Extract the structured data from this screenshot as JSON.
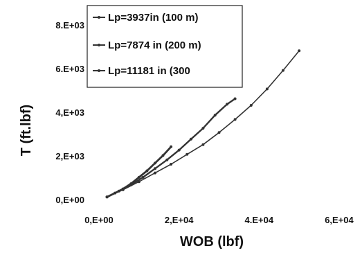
{
  "chart_data": {
    "type": "line",
    "title": "",
    "xlabel": "WOB (lbf)",
    "ylabel": "T (ft.lbf)",
    "xlim": [
      0,
      60000
    ],
    "ylim": [
      0,
      8000
    ],
    "x_ticks": [
      {
        "value": 0,
        "label": "0,E+00"
      },
      {
        "value": 20000,
        "label": "2,E+04"
      },
      {
        "value": 40000,
        "label": "4.E+04"
      },
      {
        "value": 60000,
        "label": "6,E+04"
      }
    ],
    "y_ticks": [
      {
        "value": 0,
        "label": "0,E+00"
      },
      {
        "value": 2000,
        "label": "2,E+03"
      },
      {
        "value": 4000,
        "label": "4,E+03"
      },
      {
        "value": 6000,
        "label": "6.E+03"
      },
      {
        "value": 8000,
        "label": "8.E+03"
      }
    ],
    "grid": false,
    "legend_position": "top-left",
    "series": [
      {
        "name": "Lp=3937in (100 m)",
        "color": "#333333",
        "x": [
          2000,
          4000,
          6000,
          8000,
          10000,
          12000,
          14000,
          16000,
          18000
        ],
        "y": [
          150,
          330,
          520,
          760,
          1050,
          1350,
          1700,
          2050,
          2450
        ]
      },
      {
        "name": "Lp=7874 in (200 m)",
        "color": "#333333",
        "x": [
          2000,
          5000,
          8000,
          11000,
          14000,
          17000,
          20000,
          23000,
          26000,
          29000,
          32000,
          34000
        ],
        "y": [
          150,
          420,
          700,
          1050,
          1450,
          1850,
          2300,
          2800,
          3300,
          3900,
          4400,
          4650
        ]
      },
      {
        "name": "Lp=11181 in (300",
        "color": "#333333",
        "x": [
          2000,
          6000,
          10000,
          14000,
          18000,
          22000,
          26000,
          30000,
          34000,
          38000,
          42000,
          46000,
          50000
        ],
        "y": [
          150,
          480,
          850,
          1250,
          1650,
          2100,
          2550,
          3100,
          3700,
          4350,
          5100,
          5950,
          6850
        ]
      }
    ]
  }
}
